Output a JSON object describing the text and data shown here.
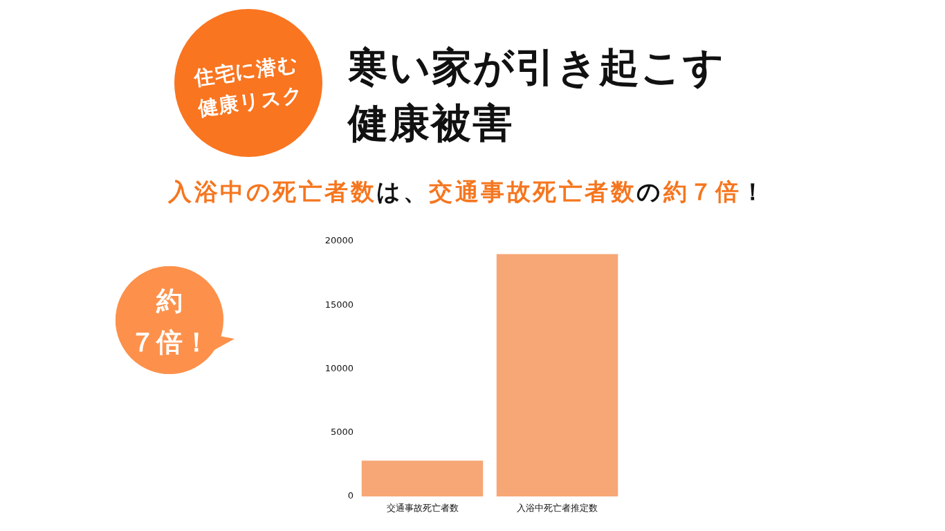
{
  "chart_data": {
    "type": "bar",
    "title": "寒い家が引き起こす健康被害",
    "subtitle": "入浴中の死亡者数は、交通事故死亡者数の約７倍！",
    "annotations": [
      "住宅に潜む健康リスク",
      "約７倍！"
    ],
    "categories": [
      "交通事故死亡者数",
      "入浴中死亡者推定数"
    ],
    "values": [
      2800,
      19000
    ],
    "color": "#f6a775",
    "ylim": [
      0,
      20000
    ],
    "yticks": [
      0,
      5000,
      10000,
      15000,
      20000
    ]
  }
}
